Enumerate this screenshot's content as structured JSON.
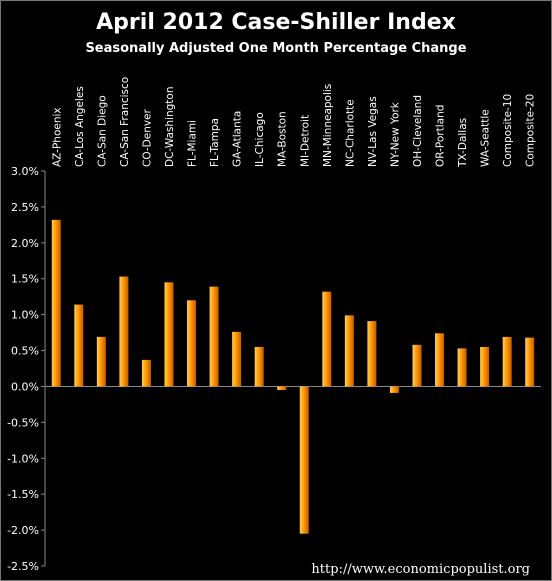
{
  "chart_data": {
    "type": "bar",
    "title": "April 2012 Case-Shiller Index",
    "subtitle": "Seasonally Adjusted One Month Percentage Change",
    "categories": [
      "AZ-Phoenix",
      "CA-Los Angeles",
      "CA-San Diego",
      "CA-San Francisco",
      "CO-Denver",
      "DC-Washington",
      "FL-Miami",
      "FL-Tampa",
      "GA-Atlanta",
      "IL-Chicago",
      "MA-Boston",
      "MI-Detroit",
      "MN-Minneapolis",
      "NC-Charlotte",
      "NV-Las Vegas",
      "NY-New York",
      "OH-Cleveland",
      "OR-Portland",
      "TX-Dallas",
      "WA-Seattle",
      "Composite-10",
      "Composite-20"
    ],
    "values": [
      2.32,
      1.14,
      0.69,
      1.53,
      0.37,
      1.45,
      1.2,
      1.39,
      0.76,
      0.55,
      -0.05,
      -2.05,
      1.32,
      0.99,
      0.91,
      -0.09,
      0.58,
      0.74,
      0.53,
      0.55,
      0.69,
      0.68
    ],
    "ylim": [
      -2.5,
      3.0
    ],
    "yticks": [
      -2.5,
      -2.0,
      -1.5,
      -1.0,
      -0.5,
      0.0,
      0.5,
      1.0,
      1.5,
      2.0,
      2.5,
      3.0
    ],
    "ytick_labels": [
      "-2.5%",
      "-2.0%",
      "-1.5%",
      "-1.0%",
      "-0.5%",
      "0.0%",
      "0.5%",
      "1.0%",
      "1.5%",
      "2.0%",
      "2.5%",
      "3.0%"
    ],
    "xlabel": "",
    "ylabel": "",
    "grid": false,
    "legend": "none",
    "colors": {
      "bar_light": "#ffcf5a",
      "bar_mid": "#ff9a00",
      "bar_dark": "#c85a00",
      "background": "#000000",
      "text": "#ffffff"
    }
  },
  "credit": "http://www.economicpopulist.org"
}
